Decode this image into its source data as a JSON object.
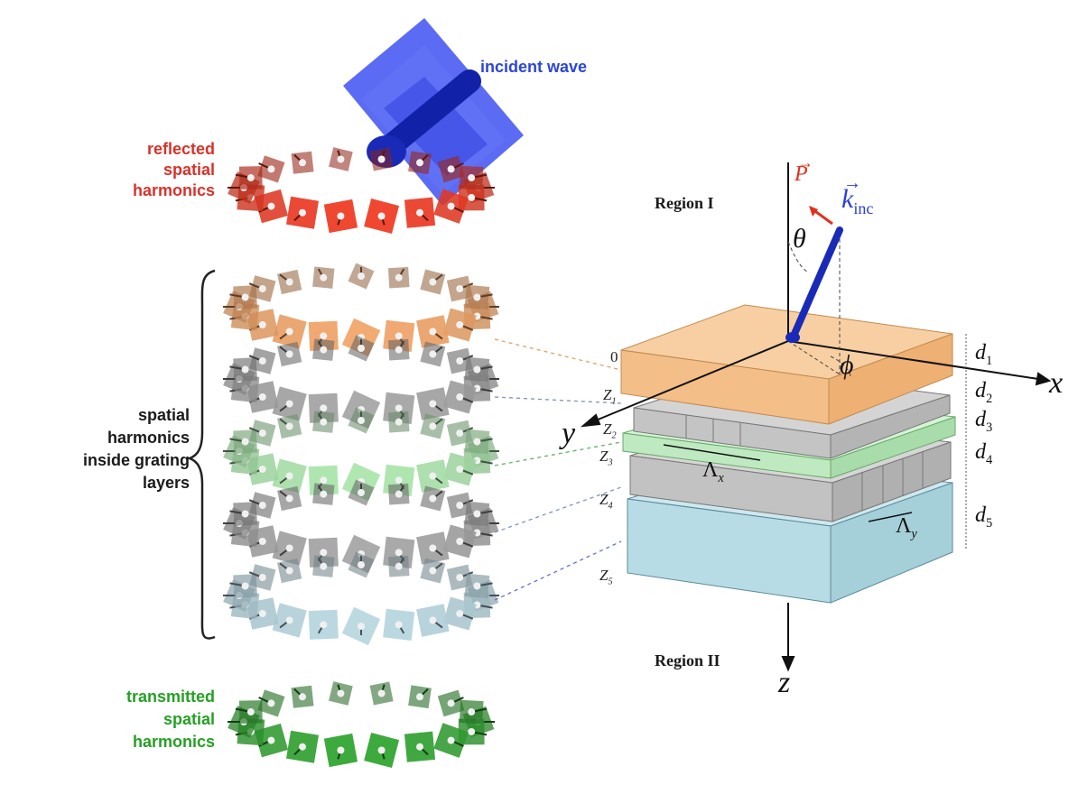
{
  "labels": {
    "incident_wave": "incident wave",
    "reflected": [
      "reflected",
      "spatial",
      "harmonics"
    ],
    "inside": [
      "spatial",
      "harmonics",
      "inside grating",
      "layers"
    ],
    "transmitted": [
      "transmitted",
      "spatial",
      "harmonics"
    ],
    "region1": "Region I",
    "region2": "Region II"
  },
  "symbols": {
    "P": "P",
    "k": "k",
    "k_sub": "inc",
    "theta": "θ",
    "phi": "ϕ",
    "x": "x",
    "y": "y",
    "z": "z",
    "Lambda": "Λ",
    "Lx_sub": "x",
    "Ly_sub": "y",
    "zero": "0",
    "Z": "Z",
    "z_subs": [
      "1",
      "2",
      "3",
      "4",
      "5"
    ],
    "d": "d",
    "d_subs": [
      "1",
      "2",
      "3",
      "4",
      "5"
    ]
  },
  "colors": {
    "reflected": "#c8321f",
    "incident": "#2a3fd8",
    "orange_layer": "#f4c090",
    "gray_layer": "#c4c4c4",
    "green_layer": "#c6eec8",
    "blue_layer": "#b9dde6",
    "transmitted": "#2a8a2a",
    "arrow_p": "#e0321f",
    "arrow_k": "#1a2ab8"
  }
}
